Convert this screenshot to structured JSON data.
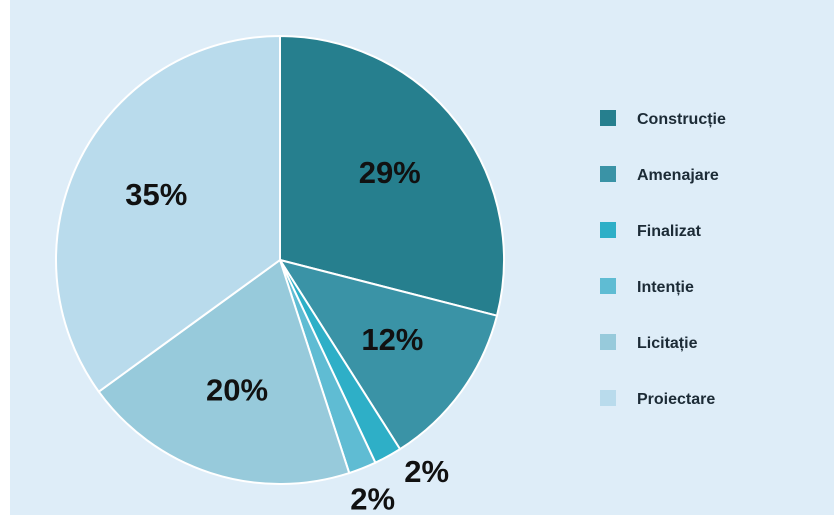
{
  "chart_data": {
    "type": "pie",
    "categories": [
      "Construcție",
      "Amenajare",
      "Finalizat",
      "Intenție",
      "Licitație",
      "Proiectare"
    ],
    "values": [
      29,
      12,
      2,
      2,
      20,
      35
    ],
    "value_labels": [
      "29%",
      "12%",
      "2%",
      "2%",
      "20%",
      "35%"
    ],
    "colors": [
      "#267f8e",
      "#3a93a6",
      "#2eafc7",
      "#5fbcd3",
      "#97cadb",
      "#b9dbec"
    ],
    "legend": "right"
  }
}
